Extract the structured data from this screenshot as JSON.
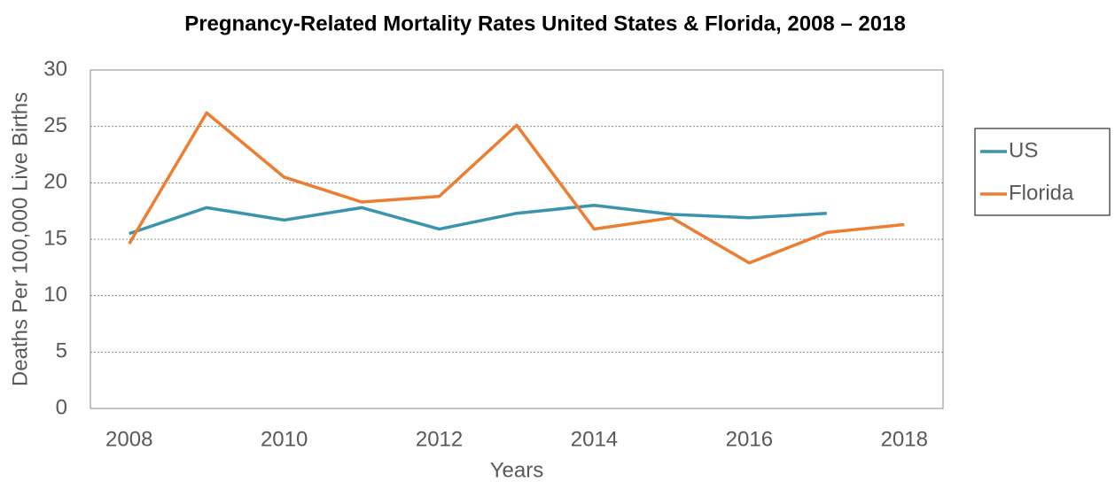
{
  "chart_data": {
    "type": "line",
    "title": "Pregnancy-Related Mortality Rates United States & Florida, 2008 – 2018",
    "x_label": "Years",
    "y_label": "Deaths Per 100,000 Live Births",
    "x": [
      2008,
      2009,
      2010,
      2011,
      2012,
      2013,
      2014,
      2015,
      2016,
      2017,
      2018
    ],
    "series": [
      {
        "name": "US",
        "color": "#3a94ad",
        "values": [
          15.5,
          17.8,
          16.7,
          17.8,
          15.9,
          17.3,
          18.0,
          17.2,
          16.9,
          17.3,
          null
        ]
      },
      {
        "name": "Florida",
        "color": "#ed7d31",
        "values": [
          14.6,
          26.2,
          20.5,
          18.3,
          18.8,
          25.1,
          15.9,
          16.9,
          12.9,
          15.6,
          16.3
        ]
      }
    ],
    "xlim": [
      2007.5,
      2018.5
    ],
    "xticks": [
      2008,
      2010,
      2012,
      2014,
      2016,
      2018
    ],
    "ylim": [
      0,
      30
    ],
    "yticks": [
      0,
      5,
      10,
      15,
      20,
      25,
      30
    ],
    "grid": true,
    "legend": "right"
  }
}
